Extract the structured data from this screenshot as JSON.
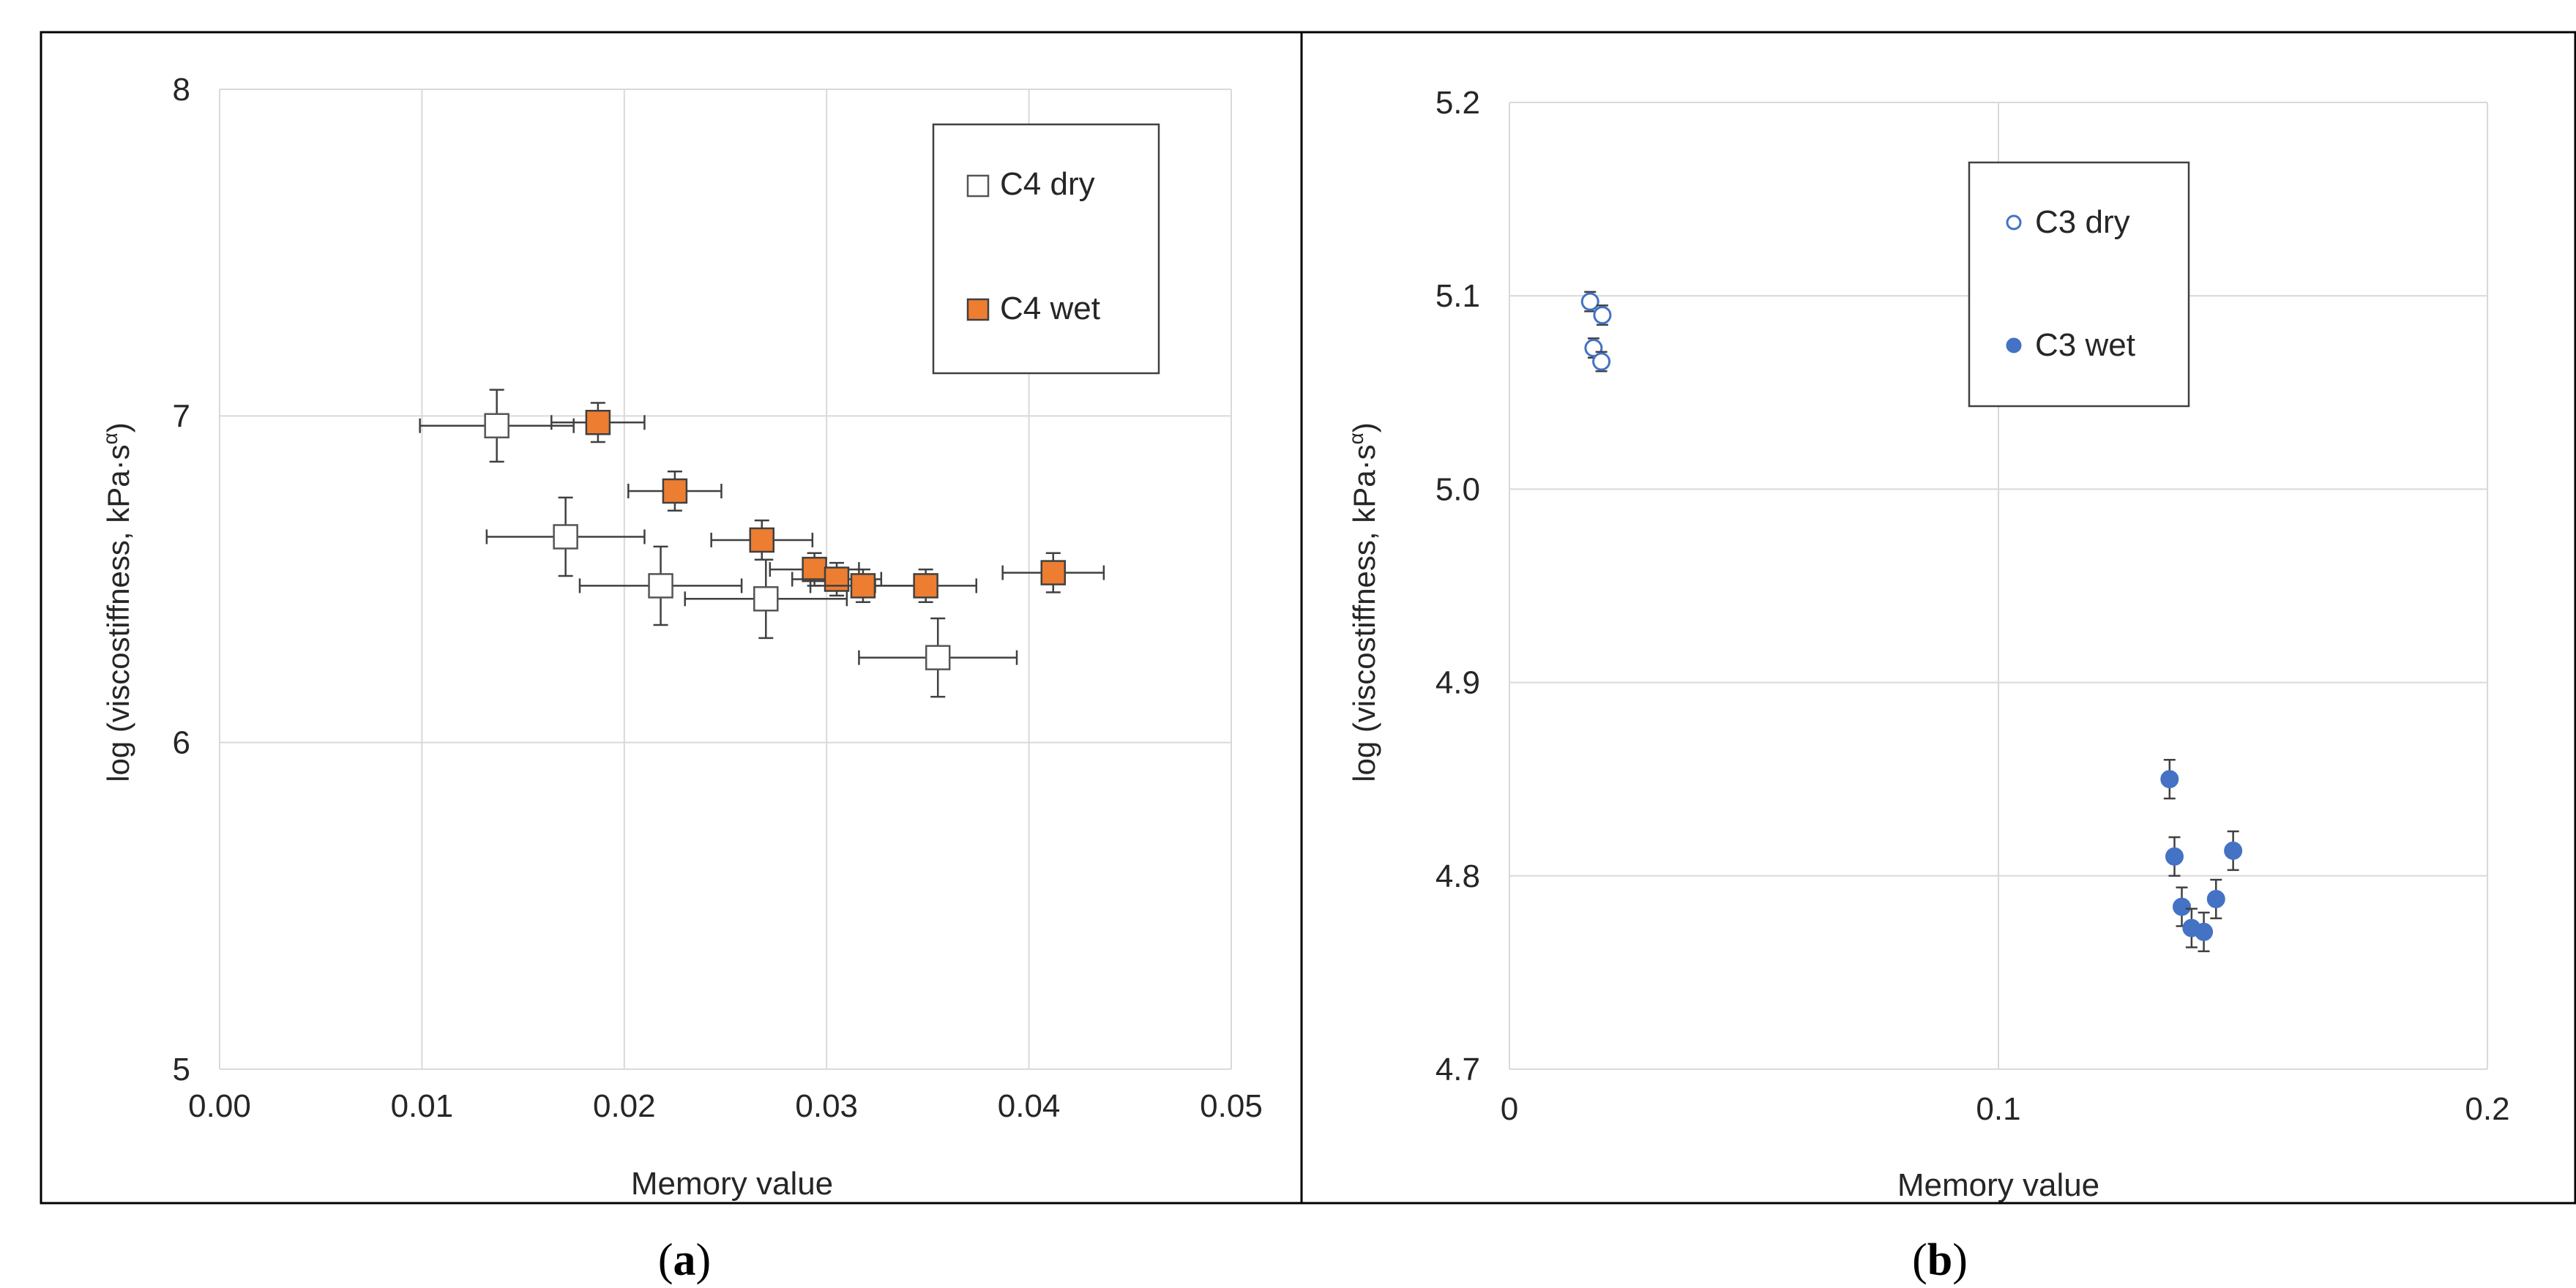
{
  "chart_data": [
    {
      "type": "scatter",
      "panel_label": "a",
      "xlabel": "Memory value",
      "ylabel": "log (viscostiffness, kPa·s",
      "ylabel_sup": "α",
      "ylabel_end": ")",
      "xlim": [
        0,
        0.05
      ],
      "ylim": [
        5,
        8
      ],
      "xticks": [
        0.0,
        0.01,
        0.02,
        0.03,
        0.04,
        0.05
      ],
      "xtick_labels": [
        "0.00",
        "0.01",
        "0.02",
        "0.03",
        "0.04",
        "0.05"
      ],
      "yticks": [
        5,
        6,
        7,
        8
      ],
      "ytick_labels": [
        "5",
        "6",
        "7",
        "8"
      ],
      "grid": true,
      "legend_position": "top-right",
      "series": [
        {
          "name": "C4 dry",
          "marker": "square-open",
          "color": "#555555",
          "points": [
            {
              "x": 0.0137,
              "y": 6.97,
              "xerr": 0.0038,
              "yerr": 0.11
            },
            {
              "x": 0.0171,
              "y": 6.63,
              "xerr": 0.0039,
              "yerr": 0.12
            },
            {
              "x": 0.0218,
              "y": 6.48,
              "xerr": 0.004,
              "yerr": 0.12
            },
            {
              "x": 0.027,
              "y": 6.44,
              "xerr": 0.004,
              "yerr": 0.12
            },
            {
              "x": 0.0355,
              "y": 6.26,
              "xerr": 0.0039,
              "yerr": 0.12
            }
          ]
        },
        {
          "name": "C4 wet",
          "marker": "square-filled",
          "color": "#ED7D31",
          "points": [
            {
              "x": 0.0187,
              "y": 6.98,
              "xerr": 0.0023,
              "yerr": 0.06
            },
            {
              "x": 0.0225,
              "y": 6.77,
              "xerr": 0.0023,
              "yerr": 0.06
            },
            {
              "x": 0.0268,
              "y": 6.62,
              "xerr": 0.0025,
              "yerr": 0.06
            },
            {
              "x": 0.0294,
              "y": 6.53,
              "xerr": 0.0022,
              "yerr": 0.05
            },
            {
              "x": 0.0305,
              "y": 6.5,
              "xerr": 0.0022,
              "yerr": 0.05
            },
            {
              "x": 0.0318,
              "y": 6.48,
              "xerr": 0.0026,
              "yerr": 0.05
            },
            {
              "x": 0.0349,
              "y": 6.48,
              "xerr": 0.0025,
              "yerr": 0.05
            },
            {
              "x": 0.0412,
              "y": 6.52,
              "xerr": 0.0025,
              "yerr": 0.06
            }
          ]
        }
      ]
    },
    {
      "type": "scatter",
      "panel_label": "b",
      "xlabel": "Memory value",
      "ylabel": "log (viscostiffness, kPa·s",
      "ylabel_sup": "α",
      "ylabel_end": ")",
      "xlim": [
        0,
        0.2
      ],
      "ylim": [
        4.7,
        5.2
      ],
      "xticks": [
        0,
        0.1,
        0.2
      ],
      "xtick_labels": [
        "0",
        "0.1",
        "0.2"
      ],
      "yticks": [
        4.7,
        4.8,
        4.9,
        5.0,
        5.1,
        5.2
      ],
      "ytick_labels": [
        "4.7",
        "4.8",
        "4.9",
        "5.0",
        "5.1",
        "5.2"
      ],
      "grid": true,
      "legend_position": "top-center",
      "series": [
        {
          "name": "C3 dry",
          "marker": "circle-open",
          "color": "#4472C4",
          "points": [
            {
              "x": 0.0165,
              "y": 5.097,
              "xerr": 0,
              "yerr": 0.005
            },
            {
              "x": 0.019,
              "y": 5.09,
              "xerr": 0,
              "yerr": 0.005
            },
            {
              "x": 0.0172,
              "y": 5.073,
              "xerr": 0,
              "yerr": 0.005
            },
            {
              "x": 0.0188,
              "y": 5.066,
              "xerr": 0,
              "yerr": 0.005
            }
          ]
        },
        {
          "name": "C3 wet",
          "marker": "circle-filled",
          "color": "#4472C4",
          "points": [
            {
              "x": 0.135,
              "y": 4.85,
              "xerr": 0,
              "yerr": 0.01
            },
            {
              "x": 0.136,
              "y": 4.81,
              "xerr": 0,
              "yerr": 0.01
            },
            {
              "x": 0.1375,
              "y": 4.784,
              "xerr": 0,
              "yerr": 0.01
            },
            {
              "x": 0.1395,
              "y": 4.773,
              "xerr": 0,
              "yerr": 0.01
            },
            {
              "x": 0.142,
              "y": 4.771,
              "xerr": 0,
              "yerr": 0.01
            },
            {
              "x": 0.1445,
              "y": 4.788,
              "xerr": 0,
              "yerr": 0.01
            },
            {
              "x": 0.148,
              "y": 4.813,
              "xerr": 0,
              "yerr": 0.01
            }
          ]
        }
      ]
    }
  ]
}
